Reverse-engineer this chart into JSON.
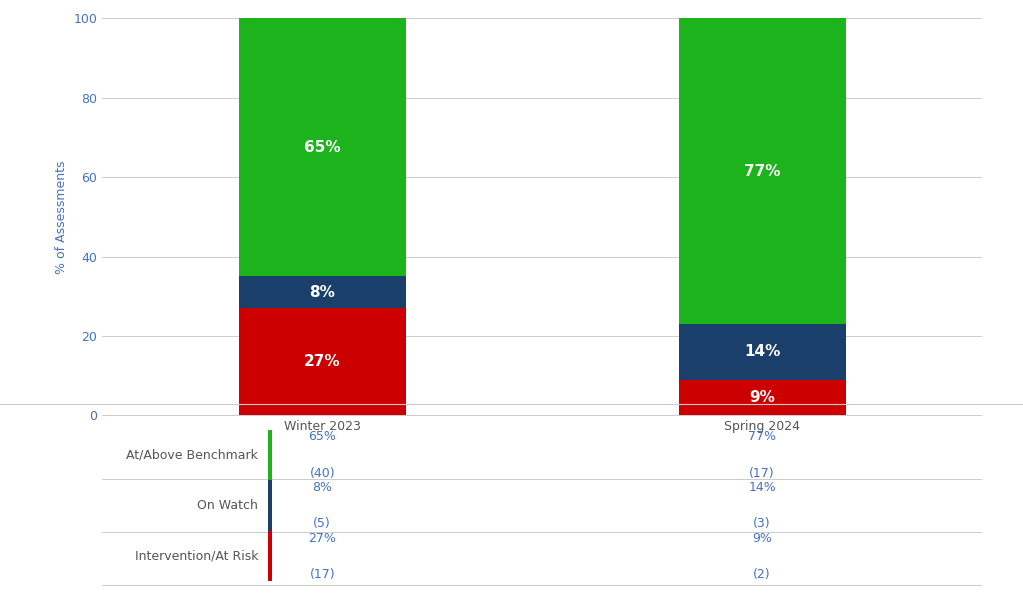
{
  "categories": [
    "Winter 2023",
    "Spring 2024"
  ],
  "at_above": [
    65,
    77
  ],
  "on_watch": [
    8,
    14
  ],
  "at_risk": [
    27,
    9
  ],
  "at_above_counts": [
    40,
    17
  ],
  "on_watch_counts": [
    5,
    3
  ],
  "at_risk_counts": [
    17,
    2
  ],
  "color_green": "#1db31d",
  "color_blue": "#1a3f6b",
  "color_red": "#cc0000",
  "bar_width": 0.38,
  "ylabel": "% of Assessments",
  "ylim": [
    0,
    100
  ],
  "yticks": [
    0,
    20,
    40,
    60,
    80,
    100
  ],
  "background_color": "#ffffff",
  "text_color_blue": "#4472c4",
  "legend_labels": [
    "At/Above Benchmark",
    "On Watch",
    "Intervention/At Risk"
  ],
  "legend_colors": [
    "#1db31d",
    "#1a3f6b",
    "#cc0000"
  ],
  "bar_label_fontsize": 11,
  "axis_label_fontsize": 9,
  "tick_fontsize": 9,
  "table_fontsize": 9,
  "ylabel_color": "#4472c4",
  "tick_color": "#4472c4",
  "label_color": "#555555"
}
